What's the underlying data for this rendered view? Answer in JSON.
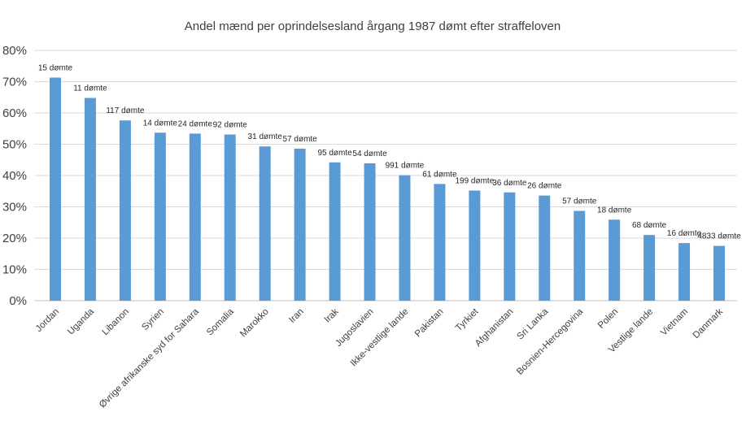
{
  "chart_data": {
    "type": "bar",
    "title": "Andel mænd per oprindelsesland årgang 1987 dømt efter straffeloven",
    "xlabel": "",
    "ylabel": "",
    "ylim": [
      0,
      80
    ],
    "y_ticks": [
      0,
      10,
      20,
      30,
      40,
      50,
      60,
      70,
      80
    ],
    "y_tick_labels": [
      "0%",
      "10%",
      "20%",
      "30%",
      "40%",
      "50%",
      "60%",
      "70%",
      "80%"
    ],
    "grid": true,
    "legend": "none",
    "bar_color": "#5b9bd5",
    "categories": [
      "Jordan",
      "Uganda",
      "Libanon",
      "Syrien",
      "Øvrige afrikanske syd for Sahara",
      "Somalia",
      "Marokko",
      "Iran",
      "Irak",
      "Jugoslavien",
      "Ikke-vestlige lande",
      "Pakistan",
      "Tyrkiet",
      "Afghanistan",
      "Sri Lanka",
      "Bosnien-Hercegovina",
      "Polen",
      "Vestlige lande",
      "Vietnam",
      "Danmark"
    ],
    "values": [
      71.3,
      64.8,
      57.6,
      53.7,
      53.4,
      53.1,
      49.3,
      48.6,
      44.2,
      43.9,
      40.1,
      37.3,
      35.2,
      34.6,
      33.6,
      28.7,
      25.9,
      21.0,
      18.4,
      17.5
    ],
    "data_labels": [
      "15 dømte",
      "11 dømte",
      "117 dømte",
      "14 dømte",
      "24 dømte",
      "92 dømte",
      "31 dømte",
      "57 dømte",
      "95 dømte",
      "54 dømte",
      "991 dømte",
      "61 dømte",
      "199 dømte",
      "36 dømte",
      "26 dømte",
      "57 dømte",
      "18 dømte",
      "68 dømte",
      "16 dømte",
      "4833 dømte"
    ]
  }
}
